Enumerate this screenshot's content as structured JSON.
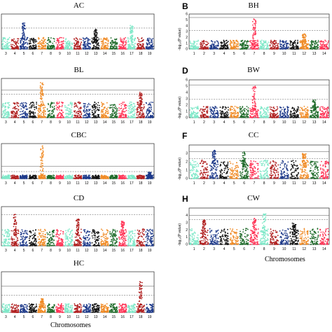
{
  "chart_data": [
    {
      "id": "AC",
      "type": "scatter",
      "title": "AC",
      "letter": "",
      "ylabel": "",
      "ylim": [
        0,
        7
      ],
      "thresholds": [
        4.2
      ],
      "chromosomes": [
        "3",
        "4",
        "5",
        "6",
        "7",
        "8",
        "9",
        "10",
        "11",
        "12",
        "13",
        "14",
        "15",
        "16",
        "17",
        "18",
        "19"
      ],
      "peaks": [
        [
          2,
          5.2
        ],
        [
          10,
          4.2
        ],
        [
          14,
          4.8
        ]
      ],
      "base": 2.3
    },
    {
      "id": "BH",
      "type": "scatter",
      "title": "BH",
      "letter": "B",
      "ylabel": "-log₁₀(P value)",
      "ylim": [
        0,
        6
      ],
      "thresholds": [
        5.4,
        3.2
      ],
      "yticks": [
        "0",
        "1",
        "2",
        "3",
        "4",
        "5",
        "6"
      ],
      "chromosomes": [
        "1",
        "2",
        "3",
        "4",
        "5",
        "6",
        "7",
        "8",
        "9",
        "10",
        "11",
        "12",
        "13",
        "14"
      ],
      "peaks": [
        [
          6,
          5.2
        ],
        [
          11,
          2.6
        ]
      ],
      "base": 1.5
    },
    {
      "id": "BL",
      "type": "scatter",
      "title": "BL",
      "letter": "",
      "ylabel": "",
      "ylim": [
        0,
        8
      ],
      "thresholds": [
        5.6,
        4.8
      ],
      "chromosomes": [
        "3",
        "4",
        "5",
        "6",
        "7",
        "8",
        "9",
        "10",
        "11",
        "12",
        "13",
        "14",
        "15",
        "16",
        "17",
        "18",
        "19"
      ],
      "peaks": [
        [
          4,
          7.2
        ],
        [
          15,
          5.2
        ]
      ],
      "base": 3.2
    },
    {
      "id": "BW",
      "type": "scatter",
      "title": "BW",
      "letter": "D",
      "ylabel": "-log₁₀(P value)",
      "ylim": [
        0,
        6
      ],
      "thresholds": [
        5.2,
        2.9
      ],
      "yticks": [
        "0",
        "1",
        "2",
        "3",
        "4",
        "5",
        "6"
      ],
      "chromosomes": [
        "1",
        "2",
        "3",
        "4",
        "5",
        "6",
        "7",
        "8",
        "9",
        "10",
        "11",
        "12",
        "13",
        "14"
      ],
      "peaks": [
        [
          6,
          5.0
        ],
        [
          12,
          2.8
        ]
      ],
      "base": 1.8
    },
    {
      "id": "CBC",
      "type": "scatter",
      "title": "CBC",
      "letter": "",
      "ylabel": "",
      "ylim": [
        0,
        9
      ],
      "thresholds": [
        3.2,
        1.8
      ],
      "chromosomes": [
        "3",
        "4",
        "5",
        "6",
        "7",
        "8",
        "9",
        "10",
        "11",
        "12",
        "13",
        "14",
        "15",
        "16",
        "17",
        "18",
        "19"
      ],
      "peaks": [
        [
          4,
          8.5
        ],
        [
          16,
          1.6
        ]
      ],
      "base": 0.9
    },
    {
      "id": "CC",
      "type": "scatter",
      "title": "CC",
      "letter": "F",
      "ylabel": "-log₁₀(P value)",
      "ylim": [
        0,
        4
      ],
      "thresholds": [
        3.2,
        2.4
      ],
      "yticks": [
        "0",
        "1",
        "2",
        "3"
      ],
      "chromosomes": [
        "1",
        "2",
        "3",
        "4",
        "5",
        "6",
        "7",
        "8",
        "9",
        "10",
        "11",
        "12",
        "13",
        "14"
      ],
      "peaks": [
        [
          2,
          3.4
        ],
        [
          5,
          3.3
        ],
        [
          11,
          3.0
        ]
      ],
      "base": 2.2
    },
    {
      "id": "CD",
      "type": "scatter",
      "title": "CD",
      "letter": "",
      "ylabel": "",
      "ylim": [
        0,
        7
      ],
      "thresholds": [
        5.6
      ],
      "chromosomes": [
        "3",
        "4",
        "5",
        "6",
        "7",
        "8",
        "9",
        "10",
        "11",
        "12",
        "13",
        "14",
        "15",
        "16",
        "17",
        "18",
        "19"
      ],
      "peaks": [
        [
          1,
          5.6
        ],
        [
          8,
          4.8
        ],
        [
          13,
          4.4
        ]
      ],
      "base": 3.0
    },
    {
      "id": "CW",
      "type": "scatter",
      "title": "CW",
      "letter": "H",
      "ylabel": "-log₁₀(P value)",
      "ylim": [
        0,
        5
      ],
      "thresholds": [
        4.0,
        3.4
      ],
      "yticks": [
        "0",
        "1",
        "2",
        "3",
        "4"
      ],
      "chromosomes": [
        "1",
        "2",
        "3",
        "4",
        "5",
        "6",
        "7",
        "8",
        "9",
        "10",
        "11",
        "12",
        "13",
        "14"
      ],
      "peaks": [
        [
          1,
          3.4
        ],
        [
          6,
          3.6
        ],
        [
          7,
          4.2
        ],
        [
          10,
          3.0
        ]
      ],
      "base": 2.2,
      "xlabel": "Chromosomes"
    },
    {
      "id": "HC",
      "type": "scatter",
      "title": "HC",
      "letter": "",
      "ylabel": "",
      "ylim": [
        0,
        8
      ],
      "thresholds": [
        5.2,
        3.4
      ],
      "chromosomes": [
        "3",
        "4",
        "5",
        "6",
        "7",
        "8",
        "9",
        "10",
        "11",
        "12",
        "13",
        "14",
        "15",
        "16",
        "17",
        "18",
        "19"
      ],
      "peaks": [
        [
          4,
          2.8
        ],
        [
          15,
          6.2
        ]
      ],
      "base": 1.7,
      "xlabel": "Chromosomes"
    }
  ],
  "palette": [
    "#7ee8c8",
    "#b02020",
    "#1e3a8a",
    "#111111",
    "#f08a24",
    "#1f6b2a",
    "#ff3355"
  ]
}
